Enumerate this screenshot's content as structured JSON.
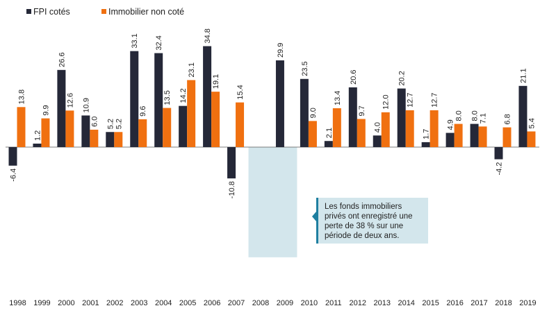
{
  "chart_data": {
    "type": "bar",
    "categories": [
      "1998",
      "1999",
      "2000",
      "2001",
      "2002",
      "2003",
      "2004",
      "2005",
      "2006",
      "2007",
      "2008",
      "2009",
      "2010",
      "2011",
      "2012",
      "2013",
      "2014",
      "2015",
      "2016",
      "2017",
      "2018",
      "2019"
    ],
    "series": [
      {
        "name": "FPI cotés",
        "color": "#252838",
        "values": [
          -6.4,
          1.2,
          26.6,
          10.9,
          5.2,
          33.1,
          32.4,
          14.2,
          34.8,
          -10.8,
          null,
          29.9,
          23.5,
          2.1,
          20.6,
          4.0,
          20.2,
          1.7,
          4.9,
          8.0,
          -4.2,
          21.1
        ],
        "labels": [
          "-6.4",
          "1.2",
          "26.6",
          "10.9",
          "5.2",
          "33.1",
          "32.4",
          "14.2",
          "34.8",
          "-10.8",
          "",
          "29.9",
          "23.5",
          "2.1",
          "20.6",
          "4.0",
          "20.2",
          "1.7",
          "4.9",
          "8.0",
          "-4.2",
          "21.1"
        ]
      },
      {
        "name": "Immobilier non coté",
        "color": "#f07010",
        "values": [
          13.8,
          9.9,
          12.6,
          6.0,
          5.2,
          9.6,
          13.5,
          23.1,
          19.1,
          15.4,
          null,
          null,
          9.0,
          13.4,
          9.7,
          12.0,
          12.7,
          12.7,
          8.0,
          7.1,
          6.8,
          5.4
        ],
        "labels": [
          "13.8",
          "9.9",
          "12.6",
          "6.0",
          "5.2",
          "9.6",
          "13.5",
          "23.1",
          "19.1",
          "15.4",
          "",
          "",
          "9.0",
          "13.4",
          "9.7",
          "12.0",
          "12.7",
          "12.7",
          "8.0",
          "7.1",
          "6.8",
          "5.4"
        ]
      }
    ],
    "legend": "top-left",
    "grid": false,
    "annotation": {
      "lines": [
        "Les fonds immobiliers",
        "privés ont enregistré une",
        "perte de 38 % sur une",
        "période de deux ans."
      ],
      "highlight_years": [
        "2008",
        "2009"
      ],
      "highlight_value": -38,
      "box_color": "#d3e6ec",
      "accent_color": "#1e7fa0"
    }
  }
}
